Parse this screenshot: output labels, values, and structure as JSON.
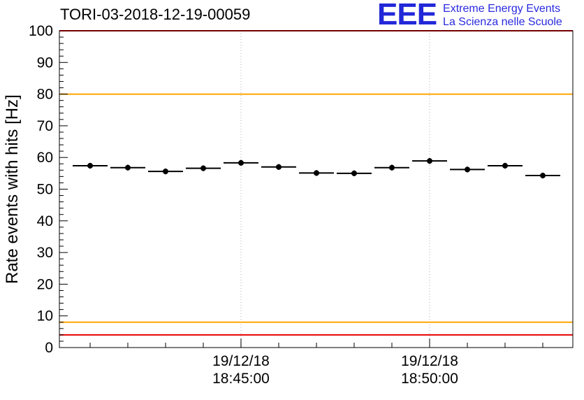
{
  "header": {
    "logo": {
      "mark": "EEE",
      "line1": "Extreme Energy Events",
      "line2": "La Scienza nelle Scuole",
      "color": "#2a2ae0"
    }
  },
  "chart_data": {
    "type": "scatter",
    "title": "TORI-03-2018-12-19-00059",
    "ylabel": "Rate events with hits [Hz]",
    "xlabel": "",
    "ylim": [
      0,
      100
    ],
    "grid": "vertical-dotted",
    "legend": "none",
    "y_ticks": [
      0,
      10,
      20,
      30,
      40,
      50,
      60,
      70,
      80,
      90,
      100
    ],
    "y_minor_tick_step": 2,
    "x_major_ticks": [
      {
        "pos": 0.3537,
        "label_line1": "19/12/18",
        "label_line2": "18:45:00"
      },
      {
        "pos": 0.7211,
        "label_line1": "19/12/18",
        "label_line2": "18:50:00"
      }
    ],
    "x_minor_ticks": [
      0.0599,
      0.1333,
      0.2068,
      0.2803,
      0.3537,
      0.4272,
      0.5007,
      0.5741,
      0.6476,
      0.7211,
      0.7946,
      0.868,
      0.9415
    ],
    "threshold_lines": [
      {
        "y": 100,
        "color": "#e60000"
      },
      {
        "y": 80,
        "color": "#ffa500"
      },
      {
        "y": 8,
        "color": "#ffa500"
      },
      {
        "y": 4,
        "color": "#e60000"
      }
    ],
    "series": [
      {
        "name": "rate-events-with-hits",
        "marker": "filled-circle",
        "marker_color": "#000000",
        "x_time": [
          "18:41",
          "18:42",
          "18:43",
          "18:44",
          "18:45",
          "18:46",
          "18:47",
          "18:48",
          "18:49",
          "18:50",
          "18:51",
          "18:52",
          "18:53"
        ],
        "x_frac": [
          0.0599,
          0.1333,
          0.2068,
          0.2803,
          0.3537,
          0.4272,
          0.5007,
          0.5741,
          0.6476,
          0.7211,
          0.7946,
          0.868,
          0.9415
        ],
        "values": [
          57.4,
          56.8,
          55.6,
          56.6,
          58.3,
          57.0,
          55.1,
          55.0,
          56.8,
          58.9,
          56.2,
          57.4,
          54.3
        ],
        "xerr_frac": 0.034,
        "yerr": 0.9
      }
    ]
  }
}
